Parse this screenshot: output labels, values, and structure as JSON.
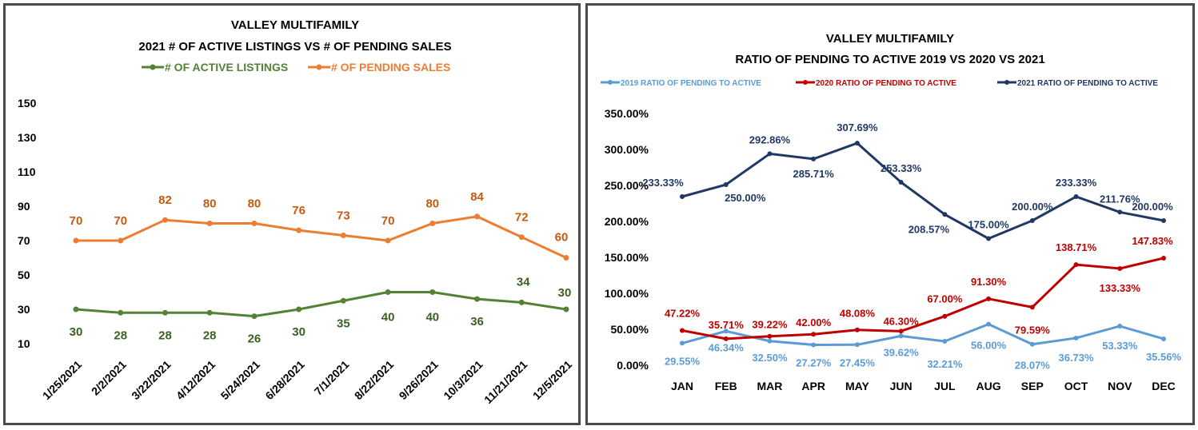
{
  "chart_data": [
    {
      "type": "line",
      "title": "VALLEY MULTIFAMILY",
      "subtitle": "2021 # OF ACTIVE LISTINGS VS # OF PENDING SALES",
      "categories": [
        "1/25/2021",
        "2/2/2021",
        "3/22/2021",
        "4/12/2021",
        "5/24/2021",
        "6/28/2021",
        "7/1/2021",
        "8/22/2021",
        "9/26/2021",
        "10/3/2021",
        "11/21/2021",
        "12/5/2021"
      ],
      "series": [
        {
          "name": "# OF ACTIVE LISTINGS",
          "color": "#548235",
          "values": [
            30,
            28,
            28,
            28,
            26,
            30,
            35,
            40,
            40,
            36,
            34,
            30
          ]
        },
        {
          "name": "# OF PENDING SALES",
          "color": "#ED7D31",
          "values": [
            70,
            70,
            82,
            80,
            80,
            76,
            73,
            70,
            80,
            84,
            72,
            60
          ]
        }
      ],
      "y_ticks": [
        "10",
        "30",
        "50",
        "70",
        "90",
        "110",
        "130",
        "150"
      ],
      "ylim": [
        10,
        150
      ],
      "grid": false,
      "legend": "top"
    },
    {
      "type": "line",
      "title": "VALLEY MULTIFAMILY",
      "subtitle": "RATIO OF PENDING TO ACTIVE 2019 VS 2020 VS 2021",
      "categories": [
        "JAN",
        "FEB",
        "MAR",
        "APR",
        "MAY",
        "JUN",
        "JUL",
        "AUG",
        "SEP",
        "OCT",
        "NOV",
        "DEC"
      ],
      "series": [
        {
          "name": "2019 RATIO OF PENDING TO ACTIVE",
          "color": "#5B9BD5",
          "values": [
            29.55,
            46.34,
            32.5,
            27.27,
            27.45,
            39.62,
            32.21,
            56.0,
            28.07,
            36.73,
            53.33,
            35.56
          ],
          "labels": [
            "29.55%",
            "46.34%",
            "32.50%",
            "27.27%",
            "27.45%",
            "39.62%",
            "32.21%",
            "56.00%",
            "28.07%",
            "36.73%",
            "53.33%",
            "35.56%"
          ]
        },
        {
          "name": "2020 RATIO OF PENDING TO ACTIVE",
          "color": "#C00000",
          "values": [
            47.22,
            35.71,
            39.22,
            42.0,
            48.08,
            46.3,
            67.0,
            91.3,
            79.59,
            138.71,
            133.33,
            147.83
          ],
          "labels": [
            "47.22%",
            "35.71%",
            "39.22%",
            "42.00%",
            "48.08%",
            "46.30%",
            "67.00%",
            "91.30%",
            "79.59%",
            "138.71%",
            "133.33%",
            "147.83%"
          ]
        },
        {
          "name": "2021 RATIO OF PENDING TO ACTIVE",
          "color": "#203864",
          "values": [
            233.33,
            250.0,
            292.86,
            285.71,
            307.69,
            253.33,
            208.57,
            175.0,
            200.0,
            233.33,
            211.76,
            200.0
          ],
          "labels": [
            "233.33%",
            "250.00%",
            "292.86%",
            "285.71%",
            "307.69%",
            "253.33%",
            "208.57%",
            "175.00%",
            "200.00%",
            "233.33%",
            "211.76%",
            "200.00%"
          ]
        }
      ],
      "y_ticks": [
        "0.00%",
        "50.00%",
        "100.00%",
        "150.00%",
        "200.00%",
        "250.00%",
        "300.00%",
        "350.00%"
      ],
      "ylim": [
        0,
        350
      ],
      "grid": false,
      "legend": "top"
    }
  ]
}
